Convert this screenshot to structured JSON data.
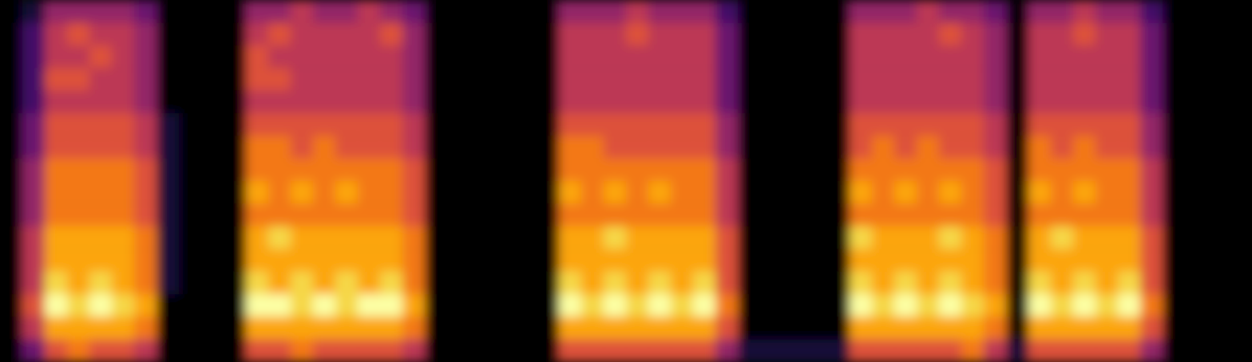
{
  "chart_data": {
    "type": "heatmap",
    "color": "inferno",
    "tick_labels": false,
    "zlim": [
      0,
      10
    ],
    "z": [
      [
        0,
        1,
        4,
        4,
        4,
        4,
        3,
        0,
        0,
        0,
        0,
        4,
        4,
        5,
        4,
        4,
        5,
        4,
        3,
        0,
        0,
        0,
        0,
        0,
        0,
        4,
        4,
        4,
        5,
        4,
        4,
        4,
        2,
        0,
        0,
        0,
        0,
        0,
        4,
        4,
        4,
        5,
        4,
        4,
        3,
        0,
        4,
        4,
        5,
        4,
        4,
        2,
        0,
        0,
        0,
        0
      ],
      [
        0,
        2,
        5,
        6,
        5,
        5,
        4,
        0,
        0,
        0,
        0,
        5,
        6,
        5,
        5,
        5,
        5,
        6,
        4,
        0,
        0,
        0,
        0,
        0,
        0,
        5,
        5,
        5,
        6,
        5,
        5,
        5,
        3,
        0,
        0,
        0,
        0,
        0,
        5,
        5,
        5,
        5,
        6,
        5,
        4,
        0,
        5,
        5,
        6,
        5,
        5,
        3,
        0,
        0,
        0,
        0
      ],
      [
        0,
        2,
        5,
        5,
        6,
        5,
        4,
        0,
        0,
        0,
        0,
        6,
        5,
        5,
        5,
        5,
        5,
        5,
        4,
        0,
        0,
        0,
        0,
        0,
        0,
        5,
        5,
        5,
        5,
        5,
        5,
        5,
        3,
        0,
        0,
        0,
        0,
        0,
        5,
        5,
        5,
        5,
        5,
        5,
        4,
        0,
        5,
        5,
        5,
        5,
        5,
        3,
        0,
        0,
        0,
        0
      ],
      [
        0,
        2,
        6,
        6,
        5,
        5,
        4,
        0,
        0,
        0,
        0,
        6,
        6,
        5,
        5,
        5,
        5,
        5,
        4,
        0,
        0,
        0,
        0,
        0,
        0,
        5,
        5,
        5,
        5,
        5,
        5,
        5,
        3,
        0,
        0,
        0,
        0,
        0,
        5,
        5,
        5,
        5,
        5,
        5,
        4,
        0,
        5,
        5,
        5,
        5,
        5,
        3,
        0,
        0,
        0,
        0
      ],
      [
        0,
        2,
        5,
        5,
        5,
        5,
        4,
        0,
        0,
        0,
        0,
        5,
        5,
        5,
        5,
        5,
        5,
        5,
        4,
        0,
        0,
        0,
        0,
        0,
        0,
        5,
        5,
        5,
        5,
        5,
        5,
        5,
        3,
        0,
        0,
        0,
        0,
        0,
        5,
        5,
        5,
        5,
        5,
        5,
        4,
        0,
        5,
        5,
        5,
        5,
        5,
        3,
        0,
        0,
        0,
        0
      ],
      [
        0,
        3,
        6,
        6,
        6,
        6,
        5,
        1,
        0,
        0,
        0,
        6,
        6,
        6,
        6,
        6,
        6,
        6,
        5,
        0,
        0,
        0,
        0,
        0,
        0,
        6,
        6,
        6,
        6,
        6,
        6,
        6,
        4,
        0,
        0,
        0,
        0,
        0,
        6,
        6,
        6,
        6,
        6,
        6,
        5,
        0,
        6,
        6,
        6,
        6,
        6,
        4,
        0,
        0,
        0,
        0
      ],
      [
        0,
        3,
        6,
        6,
        6,
        6,
        5,
        1,
        0,
        0,
        0,
        7,
        7,
        6,
        7,
        6,
        6,
        6,
        5,
        0,
        0,
        0,
        0,
        0,
        0,
        7,
        7,
        6,
        6,
        6,
        6,
        6,
        4,
        0,
        0,
        0,
        0,
        0,
        6,
        7,
        6,
        7,
        6,
        6,
        5,
        0,
        7,
        6,
        7,
        6,
        6,
        4,
        0,
        0,
        0,
        0
      ],
      [
        0,
        4,
        7,
        7,
        7,
        7,
        6,
        1,
        0,
        0,
        0,
        7,
        7,
        7,
        7,
        7,
        7,
        7,
        6,
        0,
        0,
        0,
        0,
        0,
        0,
        7,
        7,
        7,
        7,
        7,
        7,
        7,
        5,
        0,
        0,
        0,
        0,
        0,
        7,
        7,
        7,
        7,
        7,
        7,
        6,
        0,
        7,
        7,
        7,
        7,
        7,
        5,
        0,
        0,
        0,
        0
      ],
      [
        0,
        4,
        7,
        7,
        7,
        7,
        6,
        1,
        0,
        0,
        0,
        8,
        7,
        8,
        7,
        8,
        7,
        7,
        6,
        0,
        0,
        0,
        0,
        0,
        0,
        8,
        7,
        8,
        7,
        8,
        7,
        7,
        5,
        0,
        0,
        0,
        0,
        0,
        8,
        7,
        8,
        7,
        8,
        7,
        6,
        0,
        8,
        7,
        8,
        7,
        7,
        5,
        0,
        0,
        0,
        0
      ],
      [
        0,
        4,
        7,
        7,
        7,
        7,
        6,
        1,
        0,
        0,
        0,
        7,
        7,
        7,
        7,
        7,
        7,
        7,
        6,
        0,
        0,
        0,
        0,
        0,
        0,
        7,
        7,
        7,
        7,
        7,
        7,
        7,
        5,
        0,
        0,
        0,
        0,
        0,
        7,
        7,
        7,
        7,
        7,
        7,
        6,
        0,
        7,
        7,
        7,
        7,
        7,
        5,
        0,
        0,
        0,
        0
      ],
      [
        0,
        5,
        8,
        8,
        8,
        8,
        7,
        1,
        0,
        0,
        0,
        8,
        9,
        8,
        8,
        8,
        8,
        8,
        7,
        0,
        0,
        0,
        0,
        0,
        0,
        8,
        8,
        9,
        8,
        8,
        8,
        8,
        6,
        0,
        0,
        0,
        0,
        0,
        9,
        8,
        8,
        8,
        9,
        8,
        7,
        0,
        8,
        9,
        8,
        8,
        8,
        6,
        0,
        0,
        0,
        0
      ],
      [
        0,
        5,
        8,
        8,
        8,
        8,
        7,
        1,
        0,
        0,
        0,
        8,
        8,
        8,
        8,
        8,
        8,
        8,
        7,
        0,
        0,
        0,
        0,
        0,
        0,
        8,
        8,
        8,
        8,
        8,
        8,
        8,
        6,
        0,
        0,
        0,
        0,
        0,
        8,
        8,
        8,
        8,
        8,
        8,
        7,
        0,
        8,
        8,
        8,
        8,
        8,
        6,
        0,
        0,
        0,
        0
      ],
      [
        0,
        5,
        9,
        8,
        9,
        8,
        7,
        1,
        0,
        0,
        0,
        9,
        8,
        9,
        8,
        9,
        8,
        9,
        7,
        0,
        0,
        0,
        0,
        0,
        0,
        9,
        8,
        9,
        8,
        9,
        8,
        9,
        6,
        0,
        0,
        0,
        0,
        0,
        9,
        8,
        9,
        8,
        9,
        8,
        7,
        0,
        9,
        8,
        9,
        8,
        9,
        6,
        0,
        0,
        0,
        0
      ],
      [
        0,
        6,
        10,
        9,
        10,
        9,
        8,
        0,
        0,
        0,
        0,
        10,
        10,
        9,
        10,
        9,
        10,
        10,
        8,
        0,
        0,
        0,
        0,
        0,
        0,
        10,
        9,
        10,
        9,
        10,
        9,
        10,
        7,
        0,
        0,
        0,
        0,
        0,
        10,
        9,
        10,
        9,
        10,
        9,
        8,
        0,
        10,
        9,
        10,
        9,
        10,
        7,
        0,
        0,
        0,
        0
      ],
      [
        0,
        5,
        8,
        8,
        8,
        8,
        7,
        0,
        0,
        0,
        0,
        8,
        8,
        8,
        8,
        8,
        8,
        8,
        7,
        0,
        0,
        0,
        0,
        0,
        0,
        8,
        8,
        8,
        8,
        8,
        8,
        8,
        6,
        0,
        0,
        0,
        0,
        0,
        8,
        8,
        8,
        8,
        8,
        8,
        7,
        0,
        8,
        8,
        8,
        8,
        8,
        6,
        0,
        0,
        0,
        0
      ],
      [
        0,
        3,
        6,
        7,
        6,
        6,
        5,
        0,
        0,
        0,
        0,
        6,
        6,
        7,
        6,
        6,
        6,
        6,
        5,
        0,
        0,
        0,
        0,
        0,
        0,
        6,
        6,
        6,
        6,
        6,
        6,
        6,
        4,
        1,
        1,
        1,
        1,
        1,
        6,
        6,
        6,
        6,
        6,
        7,
        5,
        1,
        6,
        6,
        6,
        6,
        6,
        4,
        0,
        0,
        0,
        0
      ]
    ]
  }
}
